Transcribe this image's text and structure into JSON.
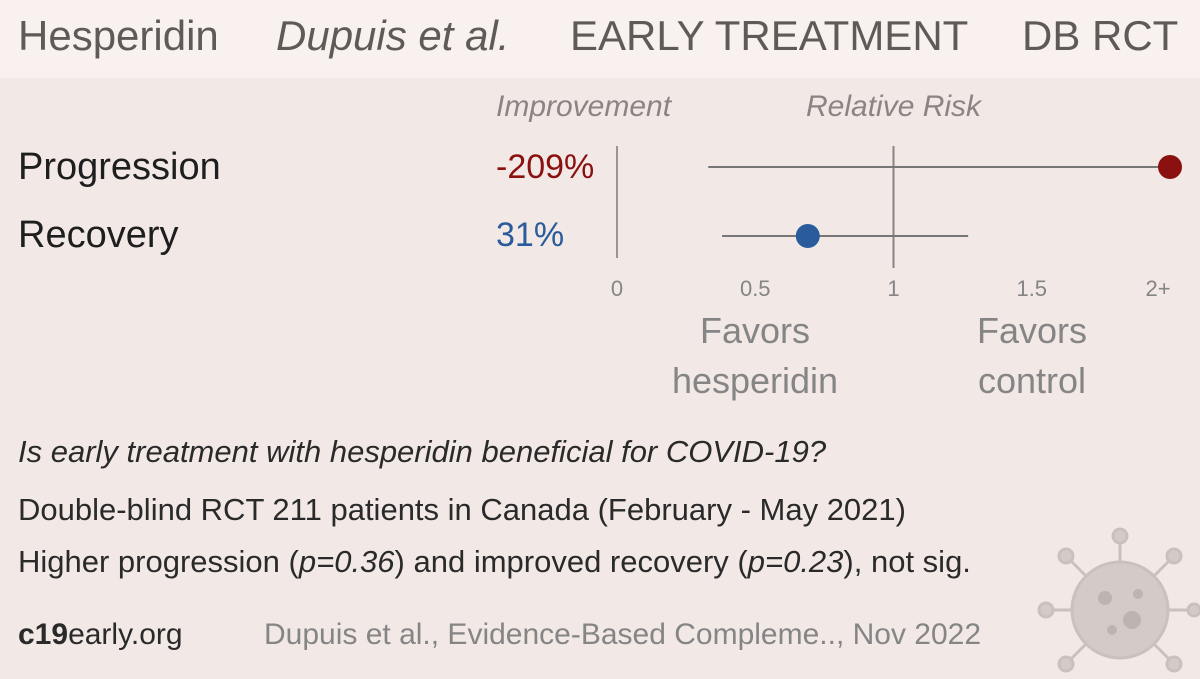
{
  "header": {
    "drug": "Hesperidin",
    "author": "Dupuis et al.",
    "stage": "EARLY TREATMENT",
    "design": "DB RCT"
  },
  "columns": {
    "improvement": "Improvement",
    "relative_risk": "Relative Risk"
  },
  "outcomes": [
    {
      "label": "Progression",
      "improvement": "-209%"
    },
    {
      "label": "Recovery",
      "improvement": "31%"
    }
  ],
  "favors": {
    "left_line1": "Favors",
    "left_line2": "hesperidin",
    "right_line1": "Favors",
    "right_line2": "control"
  },
  "summary": {
    "question": "Is early treatment with hesperidin beneficial for COVID-19?",
    "line1": "Double-blind RCT 211 patients in Canada (February - May 2021)",
    "line2_a": "Higher progression (",
    "line2_p1": "p=0.36",
    "line2_b": ") and improved recovery (",
    "line2_p2": "p=0.23",
    "line2_c": "), not sig."
  },
  "footer": {
    "site_bold": "c19",
    "site_rest": "early.org",
    "citation": "Dupuis et al., Evidence-Based Compleme.., Nov 2022"
  },
  "colors": {
    "harm": "#8b1010",
    "benefit": "#2a5b9a",
    "line": "#777777"
  },
  "chart_data": {
    "type": "forest",
    "xlabel": "Relative Risk",
    "xlim": [
      0,
      2
    ],
    "x_ticks": [
      "0",
      "0.5",
      "1",
      "1.5",
      "2+"
    ],
    "x_tick_values": [
      0,
      0.5,
      1,
      1.5,
      2
    ],
    "series": [
      {
        "name": "Progression",
        "rr": 3.09,
        "ci_low": 0.33,
        "ci_high": 2.0,
        "clipped": true,
        "color": "#8b1010"
      },
      {
        "name": "Recovery",
        "rr": 0.69,
        "ci_low": 0.38,
        "ci_high": 1.27,
        "clipped": false,
        "color": "#2a5b9a"
      }
    ]
  }
}
